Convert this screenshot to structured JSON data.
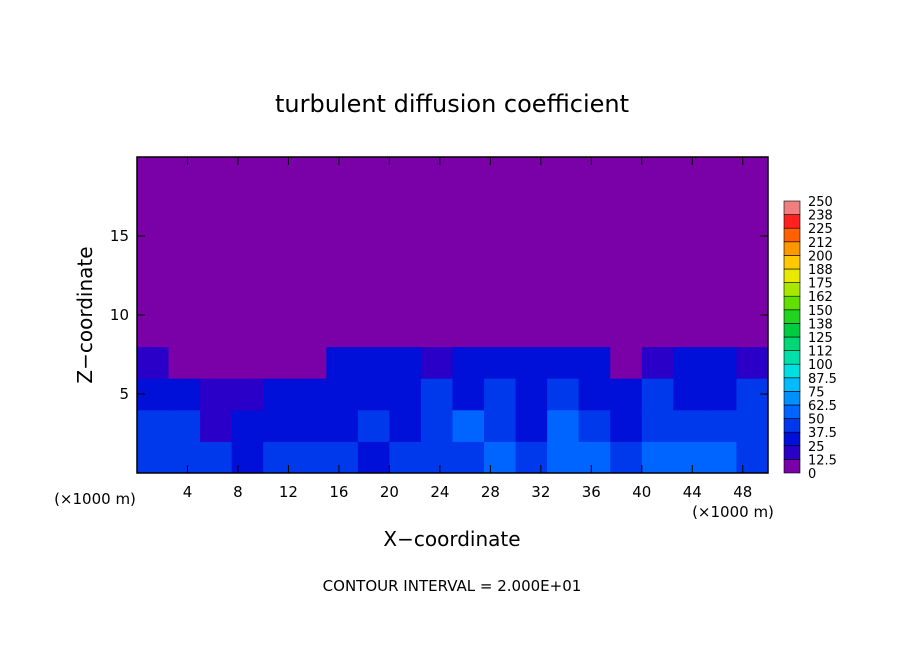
{
  "chart_data": {
    "type": "heatmap",
    "title": "turbulent diffusion coefficient",
    "xlabel": "X−coordinate",
    "ylabel": "Z−coordinate",
    "x_unit_label": "(×1000 m)",
    "footnote": "CONTOUR INTERVAL = 2.000E+01",
    "xlim": [
      0,
      50
    ],
    "ylim": [
      0,
      20
    ],
    "xticks": [
      4,
      8,
      12,
      16,
      20,
      24,
      28,
      32,
      36,
      40,
      44,
      48
    ],
    "yticks": [
      5,
      10,
      15
    ],
    "x": [
      1.25,
      3.75,
      6.25,
      8.75,
      11.25,
      13.75,
      16.25,
      18.75,
      21.25,
      23.75,
      26.25,
      28.75,
      31.25,
      33.75,
      36.25,
      38.75,
      41.25,
      43.75,
      46.25,
      48.75
    ],
    "y": [
      1,
      3,
      5,
      7,
      9,
      11,
      13,
      15,
      17,
      19
    ],
    "values": [
      [
        40,
        45,
        40,
        35,
        40,
        45,
        40,
        35,
        40,
        45,
        40,
        50,
        45,
        55,
        50,
        45,
        50,
        55,
        50,
        45
      ],
      [
        45,
        40,
        20,
        35,
        30,
        30,
        35,
        40,
        35,
        40,
        50,
        45,
        35,
        55,
        40,
        35,
        45,
        40,
        45,
        40
      ],
      [
        30,
        35,
        15,
        20,
        25,
        30,
        35,
        30,
        35,
        40,
        35,
        40,
        30,
        45,
        35,
        35,
        40,
        35,
        35,
        40
      ],
      [
        15,
        10,
        5,
        5,
        5,
        10,
        25,
        35,
        30,
        15,
        25,
        30,
        30,
        35,
        25,
        10,
        20,
        30,
        30,
        20
      ],
      [
        0,
        0,
        0,
        0,
        0,
        0,
        5,
        5,
        0,
        0,
        0,
        5,
        5,
        5,
        0,
        0,
        0,
        5,
        5,
        0
      ],
      [
        0,
        0,
        0,
        0,
        0,
        0,
        0,
        0,
        0,
        0,
        0,
        0,
        0,
        0,
        0,
        0,
        0,
        0,
        0,
        0
      ],
      [
        0,
        0,
        0,
        0,
        0,
        0,
        0,
        0,
        0,
        0,
        0,
        0,
        0,
        0,
        0,
        0,
        0,
        0,
        0,
        0
      ],
      [
        0,
        0,
        0,
        0,
        0,
        0,
        0,
        0,
        0,
        0,
        0,
        0,
        0,
        0,
        0,
        0,
        0,
        0,
        0,
        0
      ],
      [
        0,
        0,
        0,
        0,
        0,
        0,
        0,
        0,
        0,
        0,
        0,
        0,
        0,
        0,
        0,
        0,
        0,
        0,
        0,
        0
      ],
      [
        0,
        0,
        0,
        0,
        0,
        0,
        0,
        0,
        0,
        0,
        0,
        0,
        0,
        0,
        0,
        0,
        0,
        0,
        0,
        0
      ]
    ],
    "colorbar": {
      "levels": [
        0,
        12.5,
        25,
        37.5,
        50,
        62.5,
        75,
        87.5,
        100,
        112,
        125,
        138,
        150,
        162,
        175,
        188,
        200,
        212,
        225,
        238,
        250
      ],
      "colors": [
        "#7a00a8",
        "#2a00c8",
        "#0010d8",
        "#0038ec",
        "#0064ff",
        "#0090ff",
        "#00bcff",
        "#00e0e0",
        "#00e0a8",
        "#00d878",
        "#00cc40",
        "#20d420",
        "#60e000",
        "#a8e800",
        "#e8e800",
        "#ffc800",
        "#ff9800",
        "#ff6000",
        "#ff2020",
        "#f08080"
      ]
    }
  }
}
